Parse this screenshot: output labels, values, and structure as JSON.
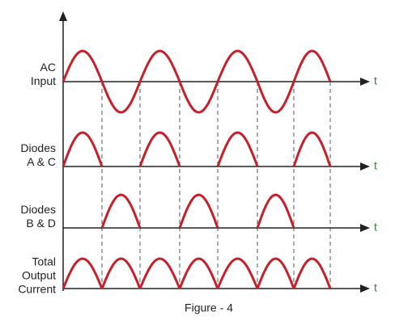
{
  "rows": [
    {
      "label": [
        "AC",
        "Input"
      ],
      "axis_label": "t"
    },
    {
      "label": [
        "Diodes",
        "A & C"
      ],
      "axis_label": "t"
    },
    {
      "label": [
        "Diodes",
        "B & D"
      ],
      "axis_label": "t"
    },
    {
      "label": [
        "Total",
        "Output",
        "Current"
      ],
      "axis_label": "t"
    }
  ],
  "caption": "Figure - 4"
}
